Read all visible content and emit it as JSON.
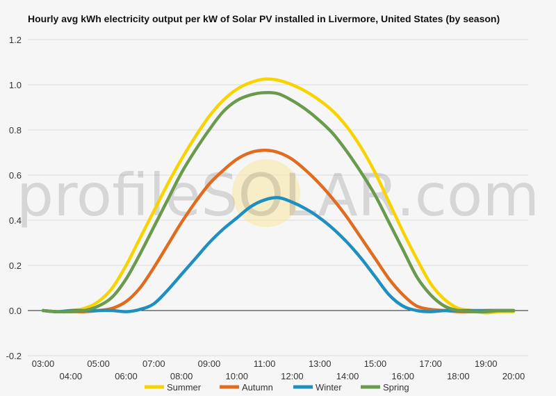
{
  "chart_data": {
    "type": "line",
    "title": "Hourly avg kWh electricity output per kW of Solar PV installed in Livermore, United States (by season)",
    "xlabel": "",
    "ylabel": "",
    "ylim": [
      -0.2,
      1.2
    ],
    "yticks": [
      "-0.2",
      "0.0",
      "0.2",
      "0.4",
      "0.6",
      "0.8",
      "1.0",
      "1.2"
    ],
    "xlim": [
      3,
      20
    ],
    "xticks": [
      "03:00",
      "04:00",
      "05:00",
      "06:00",
      "07:00",
      "08:00",
      "09:00",
      "10:00",
      "11:00",
      "12:00",
      "13:00",
      "14:00",
      "15:00",
      "16:00",
      "17:00",
      "18:00",
      "19:00",
      "20:00"
    ],
    "x": [
      3,
      3.5,
      4,
      4.5,
      5,
      5.5,
      6,
      6.5,
      7,
      7.5,
      8,
      8.5,
      9,
      9.5,
      10,
      10.5,
      11,
      11.5,
      12,
      12.5,
      13,
      13.5,
      14,
      14.5,
      15,
      15.5,
      16,
      16.5,
      17,
      17.5,
      18,
      18.5,
      19,
      19.5,
      20
    ],
    "grid": true,
    "legend_position": "bottom",
    "watermark": "profileSOLAR.com",
    "series": [
      {
        "name": "Summer",
        "color": "#f7d400",
        "values": [
          0,
          -0.005,
          0,
          0.01,
          0.04,
          0.1,
          0.2,
          0.32,
          0.44,
          0.56,
          0.67,
          0.77,
          0.86,
          0.93,
          0.98,
          1.01,
          1.025,
          1.02,
          1.0,
          0.97,
          0.93,
          0.88,
          0.81,
          0.72,
          0.61,
          0.48,
          0.35,
          0.23,
          0.12,
          0.05,
          0.01,
          0,
          -0.01,
          -0.005,
          -0.005
        ]
      },
      {
        "name": "Autumn",
        "color": "#e06c1f",
        "values": [
          0,
          -0.005,
          -0.005,
          -0.005,
          0,
          0.01,
          0.04,
          0.1,
          0.19,
          0.29,
          0.39,
          0.48,
          0.56,
          0.62,
          0.67,
          0.7,
          0.71,
          0.7,
          0.67,
          0.62,
          0.56,
          0.49,
          0.41,
          0.32,
          0.23,
          0.14,
          0.07,
          0.02,
          0.005,
          0,
          -0.005,
          -0.005,
          0,
          0,
          0
        ]
      },
      {
        "name": "Winter",
        "color": "#1f8fbf",
        "values": [
          0,
          -0.005,
          0,
          0,
          0,
          0,
          -0.005,
          0.005,
          0.03,
          0.09,
          0.16,
          0.23,
          0.3,
          0.36,
          0.41,
          0.46,
          0.49,
          0.5,
          0.48,
          0.45,
          0.41,
          0.36,
          0.3,
          0.23,
          0.15,
          0.07,
          0.02,
          0,
          -0.005,
          0,
          0,
          0,
          0,
          0,
          0
        ]
      },
      {
        "name": "Spring",
        "color": "#6a9a4e",
        "values": [
          0,
          -0.005,
          -0.005,
          0,
          0.02,
          0.06,
          0.14,
          0.25,
          0.37,
          0.49,
          0.61,
          0.71,
          0.8,
          0.88,
          0.93,
          0.955,
          0.965,
          0.96,
          0.93,
          0.89,
          0.84,
          0.78,
          0.7,
          0.61,
          0.51,
          0.39,
          0.27,
          0.15,
          0.07,
          0.02,
          0,
          -0.005,
          -0.005,
          0,
          0
        ]
      }
    ]
  }
}
